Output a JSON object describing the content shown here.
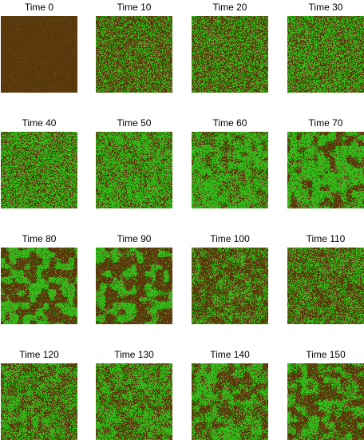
{
  "colors": {
    "soil": "#5a3a0c",
    "vegetation": "#36b51a",
    "background": "#ffffff"
  },
  "panels": [
    {
      "title": "Time 0",
      "vegetation_fraction": 0.0
    },
    {
      "title": "Time 10",
      "vegetation_fraction": 0.35
    },
    {
      "title": "Time 20",
      "vegetation_fraction": 0.45
    },
    {
      "title": "Time 30",
      "vegetation_fraction": 0.55
    },
    {
      "title": "Time 40",
      "vegetation_fraction": 0.6
    },
    {
      "title": "Time 50",
      "vegetation_fraction": 0.62
    },
    {
      "title": "Time 60",
      "vegetation_fraction": 0.62
    },
    {
      "title": "Time 70",
      "vegetation_fraction": 0.58
    },
    {
      "title": "Time 80",
      "vegetation_fraction": 0.5
    },
    {
      "title": "Time 90",
      "vegetation_fraction": 0.4
    },
    {
      "title": "Time 100",
      "vegetation_fraction": 0.42
    },
    {
      "title": "Time 110",
      "vegetation_fraction": 0.45
    },
    {
      "title": "Time 120",
      "vegetation_fraction": 0.5
    },
    {
      "title": "Time 130",
      "vegetation_fraction": 0.53
    },
    {
      "title": "Time 140",
      "vegetation_fraction": 0.52
    },
    {
      "title": "Time 150",
      "vegetation_fraction": 0.48
    }
  ]
}
